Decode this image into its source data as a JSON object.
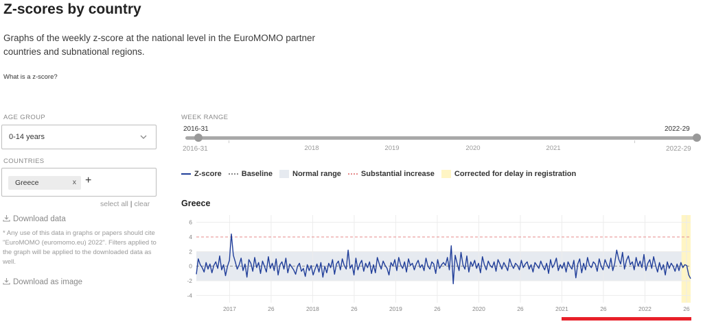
{
  "page": {
    "title": "Z-scores by country",
    "intro": "Graphs of the weekly z-score at the national level in the EuroMOMO partner countries and subnational regions.",
    "zscore_link": "What is a z-score?"
  },
  "filters": {
    "age_group_label": "AGE GROUP",
    "age_group_value": "0-14 years",
    "countries_label": "COUNTRIES",
    "selected_country": "Greece",
    "tag_remove": "x",
    "add_symbol": "+",
    "select_all": "select all",
    "separator": "|",
    "clear": "clear"
  },
  "downloads": {
    "data_label": "Download data",
    "notice": "* Any use of this data in graphs or papers should cite \"EuroMOMO (euromomo.eu) 2022\". Filters applied to the graph will be applied to the downloaded data as well.",
    "image_label": "Download as image"
  },
  "week_range": {
    "label": "WEEK RANGE",
    "start": "2016-31",
    "end": "2022-29",
    "years": [
      "2018",
      "2019",
      "2020",
      "2021"
    ]
  },
  "legend": {
    "zscore": "Z-score",
    "baseline": "Baseline",
    "normal_range": "Normal range",
    "substantial": "Substantial increase",
    "corrected": "Corrected for delay in registration"
  },
  "colors": {
    "series": "#1f3d99",
    "baseline": "#888888",
    "normal_range": "#e6eaf0",
    "substantial": "#e58a8a",
    "corrected": "#fff5c4",
    "accent": "#e8202a"
  },
  "chart_data": {
    "type": "line",
    "title": "Greece",
    "ylim": [
      -5,
      7
    ],
    "yticks": [
      -4,
      -2,
      0,
      2,
      4,
      6
    ],
    "grid": true,
    "baseline": 0,
    "normal_range": [
      -2,
      2
    ],
    "substantial_increase": 4,
    "x_range": [
      "2016-31",
      "2022-29"
    ],
    "xtick_labels": [
      "2017",
      "26",
      "2018",
      "26",
      "2019",
      "26",
      "2020",
      "26",
      "2021",
      "26",
      "2022",
      "26"
    ],
    "xtick_years": [
      2017,
      2017.5,
      2018,
      2018.5,
      2019,
      2019.5,
      2020,
      2020.5,
      2021,
      2021.5,
      2022,
      2022.5
    ],
    "start_year": 2016.6,
    "end_year": 2022.55,
    "corrected_from": 2022.44,
    "series": [
      {
        "values": [
          -1.1,
          1.0,
          0.2,
          -0.2,
          -0.8,
          0.5,
          -0.4,
          0.3,
          -0.9,
          0.1,
          0.6,
          -0.3,
          1.4,
          -0.5,
          0.2,
          -1.3,
          0.0,
          0.8,
          4.4,
          1.5,
          0.6,
          -0.4,
          0.2,
          1.1,
          -0.6,
          0.3,
          -1.5,
          0.9,
          0.4,
          -0.7,
          1.2,
          -0.2,
          0.5,
          -1.0,
          0.7,
          0.0,
          -0.8,
          1.3,
          -0.3,
          0.4,
          -0.6,
          1.0,
          -1.2,
          0.2,
          0.6,
          -0.4,
          1.1,
          -0.9,
          0.3,
          -0.1,
          -0.5,
          -1.1,
          0.0,
          0.4,
          -0.7,
          -0.3,
          -1.4,
          0.2,
          -0.6,
          0.1,
          -1.2,
          -0.4,
          0.3,
          -0.8,
          0.5,
          -1.5,
          0.0,
          -0.9,
          0.4,
          -0.2,
          0.9,
          -1.1,
          0.3,
          0.7,
          -0.5,
          1.0,
          0.1,
          -0.4,
          2.2,
          -0.3,
          0.2,
          -1.2,
          1.1,
          -0.5,
          0.3,
          0.8,
          -0.7,
          0.4,
          -0.2,
          0.6,
          -1.0,
          0.2,
          -0.9,
          1.2,
          0.3,
          -0.4,
          0.7,
          0.1,
          -0.3,
          -1.2,
          0.5,
          0.0,
          0.9,
          -0.6,
          1.2,
          0.2,
          -0.3,
          0.6,
          -0.8,
          1.0,
          0.1,
          0.4,
          -0.5,
          0.3,
          0.8,
          -0.2,
          0.2,
          -0.6,
          1.1,
          0.0,
          -0.4,
          0.6,
          0.3,
          -1.0,
          0.9,
          -0.3,
          0.2,
          0.5,
          0.1,
          1.2,
          -0.5,
          2.8,
          -2.4,
          1.5,
          0.4,
          -0.6,
          1.9,
          0.2,
          -0.4,
          1.4,
          -0.8,
          0.6,
          0.0,
          0.8,
          -0.3,
          0.4,
          -0.9,
          1.3,
          0.2,
          -0.5,
          0.7,
          0.1,
          -0.2,
          0.6,
          -0.7,
          0.9,
          0.3,
          -0.4,
          0.5,
          0.0,
          -0.6,
          1.0,
          0.2,
          -0.3,
          0.4,
          0.1,
          -0.5,
          0.8,
          -0.2,
          0.3,
          0.6,
          -0.4,
          0.2,
          -0.8,
          0.5,
          0.1,
          -0.3,
          0.7,
          0.0,
          -0.5,
          0.4,
          -1.0,
          0.9,
          -0.2,
          0.3,
          1.1,
          -0.6,
          0.2,
          -0.3,
          0.5,
          -0.8,
          0.6,
          0.0,
          -0.4,
          0.8,
          -1.6,
          0.3,
          1.0,
          -0.9,
          0.4,
          -0.5,
          1.2,
          0.1,
          -0.2,
          0.6,
          0.3,
          -0.7,
          1.0,
          0.0,
          -0.5,
          0.9,
          0.2,
          -0.3,
          1.1,
          -0.6,
          0.4,
          2.2,
          1.0,
          0.3,
          1.9,
          -0.4,
          0.8,
          1.4,
          0.2,
          0.6,
          -0.5,
          1.2,
          0.0,
          0.7,
          -0.2,
          1.6,
          -0.6,
          0.4,
          0.9,
          -0.3,
          1.3,
          0.1,
          -0.8,
          0.5,
          -0.5,
          0.2,
          -1.2,
          0.6,
          -0.3,
          0.4,
          0.0,
          -0.7,
          0.3,
          -0.6,
          0.5,
          -0.2,
          0.2,
          0.1,
          -1.2,
          -1.7
        ]
      }
    ]
  }
}
